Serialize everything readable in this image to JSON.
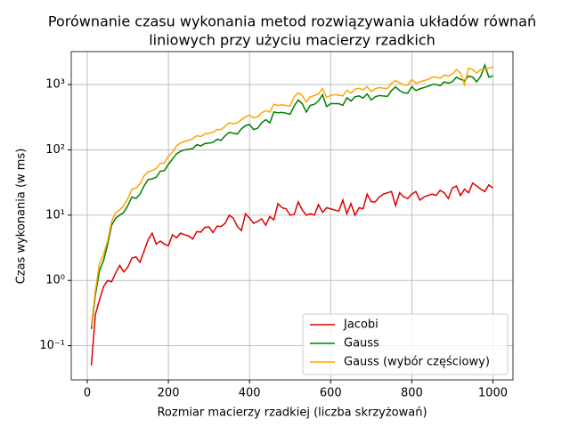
{
  "chart_data": {
    "type": "line",
    "title": [
      "Porównanie czasu wykonania metod rozwiązywania układów równań",
      "liniowych przy użyciu macierzy rzadkich"
    ],
    "xlabel": "Rozmiar macierzy rzadkiej (liczba skrzyżowań)",
    "ylabel": "Czas wykonania (w ms)",
    "x": [
      10,
      20,
      30,
      40,
      50,
      60,
      70,
      80,
      90,
      100,
      110,
      120,
      130,
      140,
      150,
      160,
      170,
      180,
      190,
      200,
      210,
      220,
      230,
      240,
      250,
      260,
      270,
      280,
      290,
      300,
      310,
      320,
      330,
      340,
      350,
      360,
      370,
      380,
      390,
      400,
      410,
      420,
      430,
      440,
      450,
      460,
      470,
      480,
      490,
      500,
      510,
      520,
      530,
      540,
      550,
      560,
      570,
      580,
      590,
      600,
      610,
      620,
      630,
      640,
      650,
      660,
      670,
      680,
      690,
      700,
      710,
      720,
      730,
      740,
      750,
      760,
      770,
      780,
      790,
      800,
      810,
      820,
      830,
      840,
      850,
      860,
      870,
      880,
      890,
      900,
      910,
      920,
      930,
      940,
      950,
      960,
      970,
      980,
      990,
      1000
    ],
    "series": [
      {
        "name": "Jacobi",
        "color": "#e00000",
        "values": [
          0.05,
          0.3,
          0.5,
          0.8,
          1.0,
          0.95,
          1.3,
          1.7,
          1.35,
          1.6,
          2.2,
          2.3,
          1.9,
          2.8,
          4.2,
          5.3,
          3.6,
          4.0,
          3.6,
          3.4,
          5.0,
          4.5,
          5.3,
          5.0,
          4.8,
          4.3,
          5.6,
          5.5,
          6.5,
          6.6,
          5.4,
          6.8,
          6.7,
          7.5,
          10.0,
          9.0,
          6.7,
          5.8,
          10.5,
          9.0,
          7.5,
          8.0,
          8.8,
          7.0,
          9.5,
          8.5,
          15,
          13,
          12.5,
          10,
          10.2,
          16,
          12,
          10,
          10.5,
          10,
          14.5,
          11,
          13,
          12.5,
          12,
          11.5,
          17,
          10.5,
          15,
          10,
          13,
          12.5,
          21,
          16,
          16,
          19,
          21,
          22,
          23,
          14,
          22,
          19,
          18,
          21,
          23,
          17,
          19,
          20,
          21,
          20,
          24,
          22,
          18,
          26,
          28,
          20,
          25,
          22,
          31,
          28,
          25,
          23,
          29,
          26
        ]
      },
      {
        "name": "Gauss",
        "color": "#007f00",
        "values": [
          0.18,
          0.6,
          1.4,
          2.0,
          3.5,
          7,
          9,
          10,
          11,
          14,
          19,
          18,
          21,
          28,
          35,
          36,
          38,
          47,
          48,
          60,
          72,
          87,
          95,
          100,
          102,
          105,
          120,
          115,
          125,
          127,
          130,
          145,
          140,
          165,
          185,
          180,
          175,
          210,
          235,
          245,
          205,
          215,
          260,
          290,
          260,
          380,
          370,
          375,
          365,
          350,
          470,
          580,
          510,
          380,
          480,
          500,
          560,
          700,
          460,
          510,
          510,
          510,
          480,
          630,
          560,
          650,
          670,
          620,
          720,
          580,
          650,
          680,
          670,
          660,
          810,
          920,
          810,
          750,
          740,
          930,
          810,
          860,
          900,
          940,
          1000,
          1010,
          960,
          1100,
          1050,
          1100,
          1300,
          1200,
          1150,
          1350,
          1300,
          1100,
          1350,
          2000,
          1300,
          1350
        ]
      },
      {
        "name": "Gauss (wybór częściowy)",
        "color": "#ffa500",
        "values": [
          0.2,
          0.7,
          1.8,
          2.5,
          4,
          8,
          11,
          12,
          14,
          18,
          25,
          26,
          30,
          40,
          46,
          48,
          52,
          62,
          63,
          80,
          92,
          115,
          128,
          135,
          140,
          148,
          165,
          160,
          175,
          180,
          185,
          205,
          205,
          230,
          260,
          250,
          260,
          290,
          320,
          340,
          310,
          320,
          370,
          400,
          380,
          500,
          480,
          490,
          480,
          470,
          650,
          750,
          680,
          540,
          650,
          680,
          720,
          870,
          640,
          680,
          700,
          690,
          670,
          820,
          740,
          850,
          880,
          830,
          930,
          780,
          860,
          900,
          880,
          870,
          1050,
          1150,
          1060,
          990,
          980,
          1200,
          1050,
          1100,
          1150,
          1200,
          1300,
          1300,
          1250,
          1400,
          1350,
          1450,
          1700,
          1500,
          1000,
          1800,
          1700,
          1500,
          1700,
          1650,
          1800,
          1850
        ]
      }
    ],
    "xlim": [
      -39.5,
      1049.5
    ],
    "xticks": [
      0,
      200,
      400,
      600,
      800,
      1000
    ],
    "ylim": [
      0.03,
      3200
    ],
    "log_y": true,
    "yticks": [
      {
        "value": 0.1,
        "label": "10⁻¹"
      },
      {
        "value": 1,
        "label": "10⁰"
      },
      {
        "value": 10,
        "label": "10¹"
      },
      {
        "value": 100,
        "label": "10²"
      },
      {
        "value": 1000,
        "label": "10³"
      }
    ],
    "grid": true,
    "legend": "lower right"
  }
}
